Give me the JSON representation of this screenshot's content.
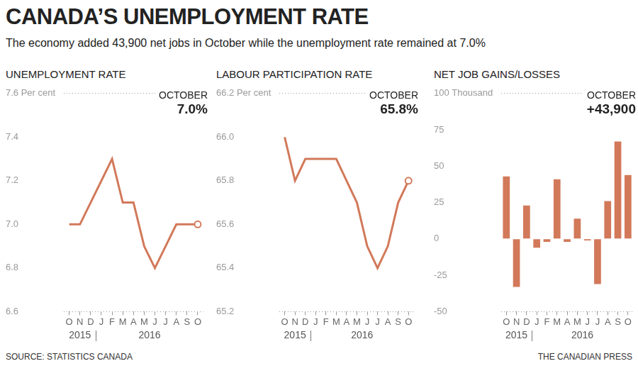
{
  "title": "CANADA’S UNEMPLOYMENT RATE",
  "subtitle": "The economy added 43,900 net jobs in October while the unemployment rate remained at 7.0%",
  "source": "SOURCE: STATISTICS CANADA",
  "credit": "THE CANADIAN PRESS",
  "chart_data": [
    {
      "type": "line",
      "title": "UNEMPLOYMENT RATE",
      "categories": [
        "O",
        "N",
        "D",
        "J",
        "F",
        "M",
        "A",
        "M",
        "J",
        "J",
        "A",
        "S",
        "O"
      ],
      "year_groups": [
        {
          "label": "2015",
          "count": 3
        },
        {
          "label": "2016",
          "count": 10
        }
      ],
      "values": [
        7.0,
        7.0,
        7.1,
        7.2,
        7.3,
        7.1,
        7.1,
        6.9,
        6.8,
        6.9,
        7.0,
        7.0,
        7.0
      ],
      "color": "#d2795a",
      "marker": "last_hollow",
      "ylim": [
        6.6,
        7.6
      ],
      "yticks": [
        6.6,
        6.8,
        {
          "value": 7.0,
          "label": "7.0"
        },
        7.2,
        7.4,
        {
          "value": 7.6,
          "label": "7.6 Per cent"
        }
      ],
      "grid": false,
      "callout": {
        "label": "OCTOBER",
        "text": "7.0%"
      }
    },
    {
      "type": "line",
      "title": "LABOUR PARTICIPATION RATE",
      "categories": [
        "O",
        "N",
        "D",
        "J",
        "F",
        "M",
        "A",
        "M",
        "J",
        "J",
        "A",
        "S",
        "O"
      ],
      "year_groups": [
        {
          "label": "2015",
          "count": 3
        },
        {
          "label": "2016",
          "count": 10
        }
      ],
      "values": [
        66.0,
        65.8,
        65.9,
        65.9,
        65.9,
        65.9,
        65.8,
        65.7,
        65.5,
        65.4,
        65.5,
        65.7,
        65.8
      ],
      "color": "#d2795a",
      "marker": "last_hollow",
      "ylim": [
        65.2,
        66.2
      ],
      "yticks": [
        65.2,
        65.4,
        65.6,
        65.8,
        {
          "value": 66.0,
          "label": "66.0"
        },
        {
          "value": 66.2,
          "label": "66.2 Per cent"
        }
      ],
      "grid": false,
      "callout": {
        "label": "OCTOBER",
        "text": "65.8%"
      }
    },
    {
      "type": "bar",
      "title": "NET JOB GAINS/LOSSES",
      "categories": [
        "O",
        "N",
        "D",
        "J",
        "F",
        "M",
        "A",
        "M",
        "J",
        "J",
        "A",
        "S",
        "O"
      ],
      "year_groups": [
        {
          "label": "2015",
          "count": 3
        },
        {
          "label": "2016",
          "count": 10
        }
      ],
      "values": [
        43,
        -33,
        23,
        -6,
        -2,
        41,
        -2,
        14,
        -1,
        -31,
        26,
        67,
        43.9
      ],
      "color": "#d2795a",
      "ylim": [
        -50,
        100
      ],
      "yticks": [
        -50,
        -25,
        0,
        25,
        50,
        75,
        {
          "value": 100,
          "label": "100 Thousand"
        }
      ],
      "grid": false,
      "callout": {
        "label": "OCTOBER",
        "text": "+43,900"
      }
    }
  ]
}
